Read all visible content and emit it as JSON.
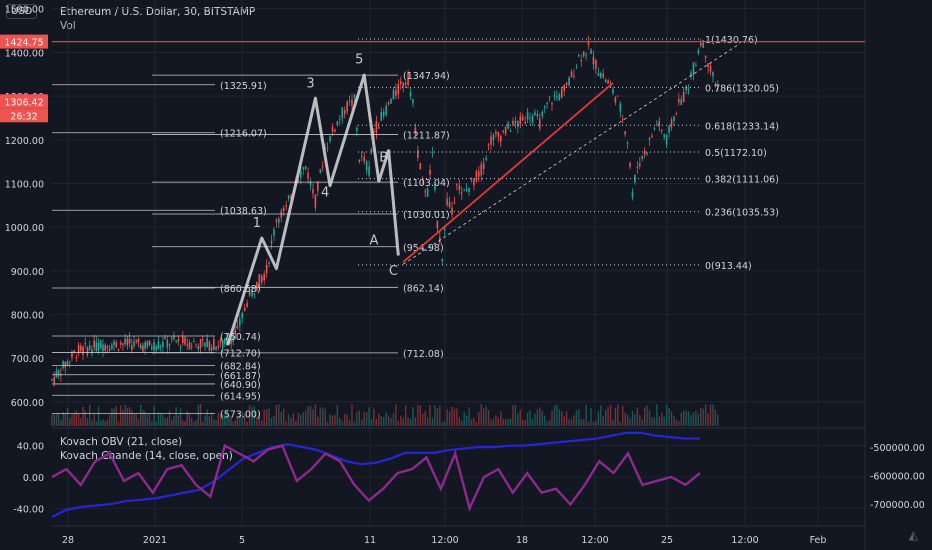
{
  "header": {
    "currency_button": "USD",
    "title": "Ethereum / U.S. Dollar, 30, BITSTAMP",
    "volume_label": "Vol"
  },
  "indicators": {
    "obv_label": "Kovach OBV (21, close)",
    "chande_label": "Kovach Chande (14, close, open)"
  },
  "colors": {
    "background": "#131722",
    "grid": "#2a2e39",
    "text": "#d1d4dc",
    "up_candle": "#26a69a",
    "down_candle": "#ef5350",
    "trend_line": "#e53935",
    "wave_line": "#d9d9d9",
    "obv_line": "#2626d9",
    "chande_line": "#8e2a8e",
    "last_price_badge": "#ef5350"
  },
  "chart_data": [
    {
      "type": "candlestick",
      "title": "Ethereum / U.S. Dollar, 30, BITSTAMP",
      "x_axis_labels": [
        "28",
        "2021",
        "5",
        "11",
        "12:00",
        "18",
        "12:00",
        "25",
        "12:00",
        "Feb"
      ],
      "price_axis_ticks": [
        1500.0,
        1400.0,
        1300.0,
        1200.0,
        1100.0,
        1000.0,
        900.0,
        800.0,
        700.0,
        600.0
      ],
      "price_axis_labels": [
        "1500.00",
        "1400.00",
        "1300.00",
        "1200.00",
        "1100.00",
        "1000.00",
        "900.00",
        "800.00",
        "700.00",
        "600.00"
      ],
      "ylim": [
        540,
        1520
      ],
      "last_price": "1424.75",
      "current_price": "1306.42",
      "countdown": "26:32",
      "horizontal_line_price": 1424.75,
      "price_path": [
        [
          0,
          650
        ],
        [
          5,
          715
        ],
        [
          10,
          730
        ],
        [
          15,
          733
        ],
        [
          20,
          728
        ],
        [
          25,
          738
        ],
        [
          30,
          733
        ],
        [
          35,
          730
        ],
        [
          38,
          760
        ],
        [
          40,
          830
        ],
        [
          42,
          870
        ],
        [
          44,
          900
        ],
        [
          46,
          1020
        ],
        [
          48,
          1040
        ],
        [
          50,
          1110
        ],
        [
          52,
          1140
        ],
        [
          54,
          1060
        ],
        [
          56,
          1180
        ],
        [
          58,
          1230
        ],
        [
          60,
          1270
        ],
        [
          62,
          1290
        ],
        [
          63,
          1160
        ],
        [
          64,
          1150
        ],
        [
          65,
          1130
        ],
        [
          66,
          1220
        ],
        [
          68,
          1260
        ],
        [
          70,
          1300
        ],
        [
          72,
          1330
        ],
        [
          73,
          1340
        ],
        [
          74,
          1280
        ],
        [
          75,
          1170
        ],
        [
          76,
          1100
        ],
        [
          77,
          1080
        ],
        [
          78,
          1160
        ],
        [
          79,
          1010
        ],
        [
          80,
          935
        ],
        [
          81,
          1060
        ],
        [
          82,
          1030
        ],
        [
          83,
          1110
        ],
        [
          84,
          1070
        ],
        [
          86,
          1100
        ],
        [
          88,
          1130
        ],
        [
          90,
          1200
        ],
        [
          92,
          1210
        ],
        [
          94,
          1230
        ],
        [
          96,
          1240
        ],
        [
          98,
          1260
        ],
        [
          100,
          1240
        ],
        [
          102,
          1290
        ],
        [
          104,
          1300
        ],
        [
          106,
          1330
        ],
        [
          108,
          1390
        ],
        [
          110,
          1410
        ],
        [
          112,
          1360
        ],
        [
          114,
          1330
        ],
        [
          116,
          1290
        ],
        [
          117,
          1250
        ],
        [
          118,
          1200
        ],
        [
          119,
          1080
        ],
        [
          120,
          1140
        ],
        [
          122,
          1180
        ],
        [
          124,
          1240
        ],
        [
          126,
          1200
        ],
        [
          128,
          1270
        ],
        [
          130,
          1310
        ],
        [
          132,
          1380
        ],
        [
          133,
          1430
        ],
        [
          134,
          1400
        ],
        [
          135,
          1360
        ],
        [
          136,
          1330
        ],
        [
          137,
          1310
        ]
      ],
      "x_domain": [
        0,
        180
      ],
      "elliott_wave": {
        "points": [
          [
            36,
            730
          ],
          [
            43,
            975
          ],
          [
            46,
            905
          ],
          [
            54,
            1295
          ],
          [
            57,
            1095
          ],
          [
            64,
            1348
          ],
          [
            67,
            1105
          ],
          [
            69,
            1175
          ],
          [
            71,
            935
          ]
        ],
        "labels": [
          {
            "text": "1",
            "x": 42,
            "price": 1000
          },
          {
            "text": "3",
            "x": 53,
            "price": 1320
          },
          {
            "text": "4",
            "x": 56,
            "price": 1070
          },
          {
            "text": "5",
            "x": 63,
            "price": 1375
          },
          {
            "text": "B",
            "x": 68,
            "price": 1150
          },
          {
            "text": "A",
            "x": 66,
            "price": 960
          },
          {
            "text": "C",
            "x": 70,
            "price": 890
          }
        ]
      },
      "left_levels": [
        {
          "text": "(1325.91)",
          "price": 1325.91
        },
        {
          "text": "(1216.07)",
          "price": 1216.07
        },
        {
          "text": "(1038.63)",
          "price": 1038.63
        },
        {
          "text": "(860.58)",
          "price": 860.58
        },
        {
          "text": "(750.74)",
          "price": 750.74
        },
        {
          "text": "(712.70)",
          "price": 712.7
        },
        {
          "text": "(682.84)",
          "price": 682.84
        },
        {
          "text": "(661.87)",
          "price": 661.87
        },
        {
          "text": "(640.90)",
          "price": 640.9
        },
        {
          "text": "(614.95)",
          "price": 614.95
        },
        {
          "text": "(573.00)",
          "price": 573.0
        }
      ],
      "middle_levels": [
        {
          "text": "(1347.94)",
          "price": 1347.94
        },
        {
          "text": "(1211.87)",
          "price": 1211.87
        },
        {
          "text": "(1103.04)",
          "price": 1103.04
        },
        {
          "text": "(1030.01)",
          "price": 1030.01
        },
        {
          "text": "(954.98)",
          "price": 954.98
        },
        {
          "text": "(862.14)",
          "price": 862.14
        },
        {
          "text": "(712.08)",
          "price": 712.08
        }
      ],
      "fib_levels": [
        {
          "text": "1(1430.76)",
          "price": 1430.76
        },
        {
          "text": "0.786(1320.05)",
          "price": 1320.05
        },
        {
          "text": "0.618(1233.14)",
          "price": 1233.14
        },
        {
          "text": "0.5(1172.10)",
          "price": 1172.1
        },
        {
          "text": "0.382(1111.06)",
          "price": 1111.06
        },
        {
          "text": "0.236(1035.53)",
          "price": 1035.53
        },
        {
          "text": "0(913.44)",
          "price": 913.44
        }
      ],
      "trend_line": {
        "from": [
          72,
          920
        ],
        "to": [
          115,
          1330
        ]
      },
      "dashed_trend_line": {
        "from": [
          72,
          915
        ],
        "to": [
          141,
          1420
        ]
      }
    },
    {
      "type": "line",
      "series": [
        {
          "name": "Kovach OBV (21, close)",
          "values": [
            -745000,
            -720000,
            -710000,
            -705000,
            -700000,
            -690000,
            -685000,
            -680000,
            -670000,
            -660000,
            -650000,
            -620000,
            -580000,
            -540000,
            -520000,
            -500000,
            -490000,
            -500000,
            -510000,
            -530000,
            -550000,
            -560000,
            -555000,
            -540000,
            -520000,
            -520000,
            -520000,
            -510000,
            -505000,
            -500000,
            -500000,
            -495000,
            -495000,
            -490000,
            -485000,
            -480000,
            -475000,
            -470000,
            -460000,
            -450000,
            -450000,
            -460000,
            -465000,
            -470000,
            -470000
          ]
        },
        {
          "name": "Kovach Chande (14, close, open)",
          "values": [
            0,
            10,
            -10,
            20,
            30,
            -5,
            5,
            -20,
            10,
            15,
            -10,
            -25,
            40,
            30,
            20,
            35,
            40,
            -5,
            10,
            30,
            20,
            -10,
            -30,
            -15,
            5,
            10,
            25,
            -15,
            30,
            -40,
            0,
            10,
            -20,
            5,
            -20,
            -15,
            -35,
            -10,
            20,
            5,
            30,
            -10,
            -5,
            0,
            -10,
            5
          ]
        }
      ],
      "left_axis_labels": [
        "40.00",
        "0.00",
        "-40.00"
      ],
      "left_axis_values": [
        40,
        0,
        -40
      ],
      "right_axis_labels": [
        "-500000.00",
        "-600000.00",
        "-700000.00"
      ],
      "right_axis_values": [
        -500000,
        -600000,
        -700000
      ]
    }
  ]
}
